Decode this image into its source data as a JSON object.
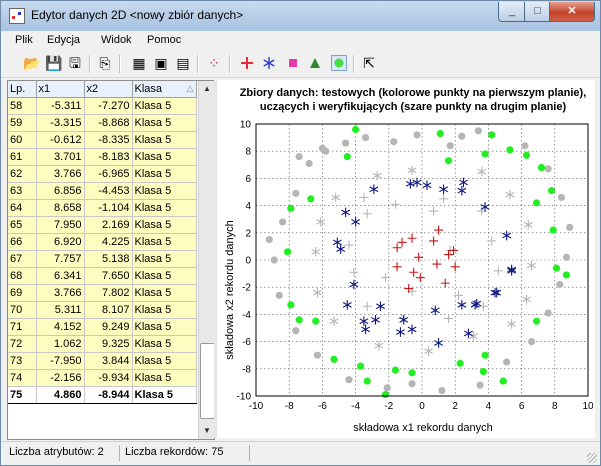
{
  "window": {
    "title": "Edytor danych 2D <nowy zbiór danych>",
    "min": "_",
    "max": "□",
    "close": "✕"
  },
  "menu": [
    {
      "label": "Plik"
    },
    {
      "label": "Edycja"
    },
    {
      "label": "Widok"
    },
    {
      "label": "Pomoc"
    }
  ],
  "toolbar": {
    "icons": [
      "open-icon",
      "save-icon",
      "save-as-icon",
      "export-icon",
      "data-icon",
      "grid-icon",
      "chart-icon",
      "scatter-icon",
      "add-cross-icon",
      "add-star-icon",
      "add-square-icon",
      "add-triangle-icon",
      "add-circle-icon",
      "pointer-icon"
    ],
    "colors": {
      "cross": "#e8283c",
      "star": "#2a3cc8",
      "square": "#e53aa0",
      "triangle": "#2e8a2e",
      "circle": "#44dd44"
    }
  },
  "table": {
    "columns": [
      "Lp.",
      "x1",
      "x2",
      "Klasa"
    ],
    "sort_indicator": "△",
    "rows": [
      [
        "58",
        "-5.311",
        "-7.270",
        "Klasa 5"
      ],
      [
        "59",
        "-3.315",
        "-8.868",
        "Klasa 5"
      ],
      [
        "60",
        "-0.612",
        "-8.335",
        "Klasa 5"
      ],
      [
        "61",
        "3.701",
        "-8.183",
        "Klasa 5"
      ],
      [
        "62",
        "3.766",
        "-6.965",
        "Klasa 5"
      ],
      [
        "63",
        "6.856",
        "-4.453",
        "Klasa 5"
      ],
      [
        "64",
        "8.658",
        "-1.104",
        "Klasa 5"
      ],
      [
        "65",
        "7.950",
        "2.169",
        "Klasa 5"
      ],
      [
        "66",
        "6.920",
        "4.225",
        "Klasa 5"
      ],
      [
        "67",
        "7.757",
        "5.138",
        "Klasa 5"
      ],
      [
        "68",
        "6.341",
        "7.650",
        "Klasa 5"
      ],
      [
        "69",
        "3.766",
        "7.802",
        "Klasa 5"
      ],
      [
        "70",
        "5.311",
        "8.107",
        "Klasa 5"
      ],
      [
        "71",
        "4.152",
        "9.249",
        "Klasa 5"
      ],
      [
        "72",
        "1.062",
        "9.325",
        "Klasa 5"
      ],
      [
        "73",
        "-7.950",
        "3.844",
        "Klasa 5"
      ],
      [
        "74",
        "-2.156",
        "-9.934",
        "Klasa 5"
      ],
      [
        "75",
        "4.860",
        "-8.944",
        "Klasa 5"
      ]
    ],
    "selected_row": 17,
    "scroll_up": "▲",
    "scroll_down": "▼"
  },
  "chart_data": {
    "type": "scatter",
    "title_line1": "Zbiory danych: testowych (kolorowe punkty na pierwszym planie),",
    "title_line2": "uczących i weryfikujących (szare punkty na drugim planie)",
    "xlabel": "składowa x1 rekordu danych",
    "ylabel": "składowa x2 rekordu danych",
    "xlim": [
      -10,
      10
    ],
    "ylim": [
      -10,
      10
    ],
    "xticks": [
      -10,
      -8,
      -6,
      -4,
      -2,
      0,
      2,
      4,
      6,
      8,
      10
    ],
    "yticks": [
      -10,
      -8,
      -6,
      -4,
      -2,
      0,
      2,
      4,
      6,
      8,
      10
    ],
    "grid": true,
    "series": [
      {
        "marker": "dot-gray",
        "color": "#b5b5b5",
        "points": [
          [
            -6.8,
            7.1
          ],
          [
            -6,
            8.2
          ],
          [
            -4.6,
            8.6
          ],
          [
            -3.4,
            9
          ],
          [
            -1.7,
            8.7
          ],
          [
            -0.3,
            9.2
          ],
          [
            2.4,
            9.1
          ],
          [
            3.4,
            9.5
          ],
          [
            6.2,
            8.4
          ],
          [
            7.6,
            6.7
          ],
          [
            8.4,
            4.6
          ],
          [
            8.9,
            2.4
          ],
          [
            8.7,
            0.2
          ],
          [
            8.3,
            -1.8
          ],
          [
            7.6,
            -3.9
          ],
          [
            6.6,
            -6
          ],
          [
            5.1,
            -7.5
          ],
          [
            3.5,
            -9.2
          ],
          [
            1.2,
            -9.6
          ],
          [
            -0.6,
            -9.1
          ],
          [
            -2.1,
            -9.4
          ],
          [
            -4.4,
            -8.8
          ],
          [
            -6.3,
            -7
          ],
          [
            -7.6,
            -5.2
          ],
          [
            -8.6,
            -2.6
          ],
          [
            -8.9,
            0
          ],
          [
            -8.4,
            2.8
          ],
          [
            -7.6,
            4.9
          ],
          [
            -5.8,
            8
          ],
          [
            1.7,
            8.4
          ],
          [
            -7.4,
            7.6
          ],
          [
            -9.2,
            1.5
          ]
        ]
      },
      {
        "marker": "cross-gray",
        "color": "#b5b5b5",
        "points": [
          [
            -3.3,
            3.4
          ],
          [
            -1.6,
            4.1
          ],
          [
            1.3,
            4.5
          ],
          [
            3.6,
            3.6
          ],
          [
            4.2,
            1.4
          ],
          [
            4.6,
            -0.8
          ],
          [
            3.7,
            -3.4
          ],
          [
            1.6,
            -4.3
          ],
          [
            -1.2,
            -4.3
          ],
          [
            -3.3,
            -3.4
          ],
          [
            -4.1,
            -0.9
          ],
          [
            -4.4,
            1.1
          ],
          [
            -0.6,
            -2.3
          ],
          [
            1.7,
            0.7
          ],
          [
            2.2,
            -2.6
          ],
          [
            -2.2,
            -1.3
          ],
          [
            0.7,
            3.6
          ],
          [
            -3.5,
            4.6
          ]
        ]
      },
      {
        "marker": "star-gray",
        "color": "#b5b5b5",
        "points": [
          [
            -5.2,
            4.6
          ],
          [
            -2.7,
            6.2
          ],
          [
            -0.6,
            6.6
          ],
          [
            3.6,
            6.5
          ],
          [
            5.3,
            4.8
          ],
          [
            6.4,
            2.6
          ],
          [
            6.6,
            -0.4
          ],
          [
            6.3,
            -2.9
          ],
          [
            5.4,
            -4.7
          ],
          [
            3.1,
            -5.6
          ],
          [
            0.4,
            -6.7
          ],
          [
            -2.6,
            -6.3
          ],
          [
            -5.3,
            -4.5
          ],
          [
            -6.3,
            -2.4
          ],
          [
            -6.4,
            0.6
          ],
          [
            -6.1,
            2.8
          ]
        ]
      },
      {
        "marker": "dot-green",
        "color": "#22ee22",
        "points": [
          [
            -5.3,
            -7.3
          ],
          [
            -3.3,
            -8.9
          ],
          [
            -0.6,
            -8.3
          ],
          [
            3.7,
            -8.2
          ],
          [
            3.8,
            -7
          ],
          [
            6.9,
            -4.5
          ],
          [
            8.7,
            -1.1
          ],
          [
            7.9,
            2.2
          ],
          [
            6.9,
            4.2
          ],
          [
            7.8,
            5.1
          ],
          [
            6.3,
            7.7
          ],
          [
            3.8,
            7.8
          ],
          [
            5.3,
            8.1
          ],
          [
            4.2,
            9.2
          ],
          [
            1.1,
            9.3
          ],
          [
            -7.9,
            3.8
          ],
          [
            -2.2,
            -9.9
          ],
          [
            4.9,
            -8.9
          ],
          [
            -4.5,
            7.6
          ],
          [
            -4,
            9.6
          ],
          [
            -6.7,
            4.5
          ],
          [
            -7.9,
            -3.3
          ],
          [
            -7.4,
            -4.4
          ],
          [
            8.1,
            -0.6
          ],
          [
            -8.1,
            0.6
          ],
          [
            7.2,
            6.8
          ],
          [
            1.6,
            7.3
          ],
          [
            2.3,
            -7.6
          ],
          [
            -6.4,
            -4.5
          ],
          [
            -1.6,
            -8.1
          ],
          [
            -3.7,
            -7.8
          ]
        ]
      },
      {
        "marker": "star-navy",
        "color": "#101880",
        "points": [
          [
            -4.6,
            3.5
          ],
          [
            -2.9,
            5.2
          ],
          [
            -0.3,
            5.7
          ],
          [
            2.5,
            5.7
          ],
          [
            3.8,
            3.9
          ],
          [
            5.1,
            1.8
          ],
          [
            5.4,
            -0.7
          ],
          [
            4.5,
            -2.4
          ],
          [
            3.3,
            -3.2
          ],
          [
            2.4,
            -3.3
          ],
          [
            0.8,
            -3.7
          ],
          [
            -1.1,
            -4.4
          ],
          [
            -2.5,
            -3.4
          ],
          [
            -4.5,
            -3.3
          ],
          [
            -4.1,
            -1.8
          ],
          [
            -4.9,
            0.8
          ],
          [
            -5.1,
            1.3
          ],
          [
            -4,
            2.8
          ],
          [
            -0.7,
            5.6
          ],
          [
            0.3,
            5.5
          ],
          [
            1.3,
            5.2
          ],
          [
            2.4,
            5.1
          ],
          [
            5.4,
            -0.8
          ],
          [
            4.4,
            -2.4
          ],
          [
            3.2,
            -3.3
          ],
          [
            -2.8,
            -4.4
          ],
          [
            -1.3,
            -5.3
          ],
          [
            -3.4,
            -5.1
          ],
          [
            1,
            -6.1
          ],
          [
            2.8,
            -5.4
          ],
          [
            -3.5,
            -4.5
          ],
          [
            -0.6,
            -5.1
          ]
        ]
      },
      {
        "marker": "cross-red",
        "color": "#c01818",
        "points": [
          [
            -1.5,
            0.9
          ],
          [
            -0.6,
            1.6
          ],
          [
            0.7,
            1.4
          ],
          [
            1.6,
            0.4
          ],
          [
            2,
            -0.5
          ],
          [
            1.4,
            -1.7
          ],
          [
            -0.1,
            -1.3
          ],
          [
            -0.8,
            -2.1
          ],
          [
            -1.5,
            -0.5
          ],
          [
            -0.2,
            0.2
          ],
          [
            0.9,
            -0.3
          ],
          [
            1,
            2.2
          ],
          [
            -0.5,
            -0.9
          ],
          [
            -1.2,
            1.3
          ],
          [
            1.9,
            0.7
          ]
        ]
      }
    ]
  },
  "status": {
    "attributes": "Liczba atrybutów: 2",
    "records": "Liczba rekordów: 75"
  }
}
